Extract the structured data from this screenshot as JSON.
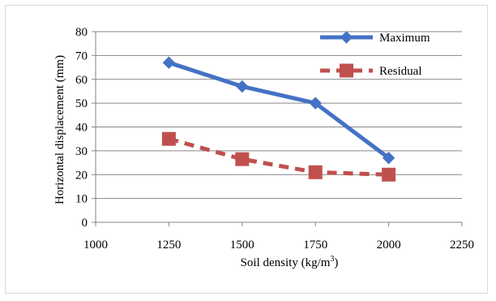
{
  "chart_data": {
    "type": "line",
    "x": [
      1250,
      1500,
      1750,
      2000
    ],
    "series": [
      {
        "name": "Maximum",
        "values": [
          67,
          57,
          50,
          27
        ],
        "color": "#4472C4",
        "style": "solid",
        "marker": "diamond"
      },
      {
        "name": "Residual",
        "values": [
          35,
          26.5,
          21,
          20
        ],
        "color": "#C0504D",
        "style": "dashed",
        "marker": "square"
      }
    ],
    "title": "",
    "xlabel_prefix": "Soil density (kg/m",
    "xlabel_sup": "3",
    "xlabel_suffix": ")",
    "ylabel": "Horizontal displacement (mm)",
    "xlim": [
      1000,
      2250
    ],
    "ylim": [
      0,
      80
    ],
    "xticks": [
      1000,
      1250,
      1500,
      1750,
      2000,
      2250
    ],
    "yticks": [
      0,
      10,
      20,
      30,
      40,
      50,
      60,
      70,
      80
    ],
    "grid": "horizontal",
    "legend": "top-right"
  }
}
